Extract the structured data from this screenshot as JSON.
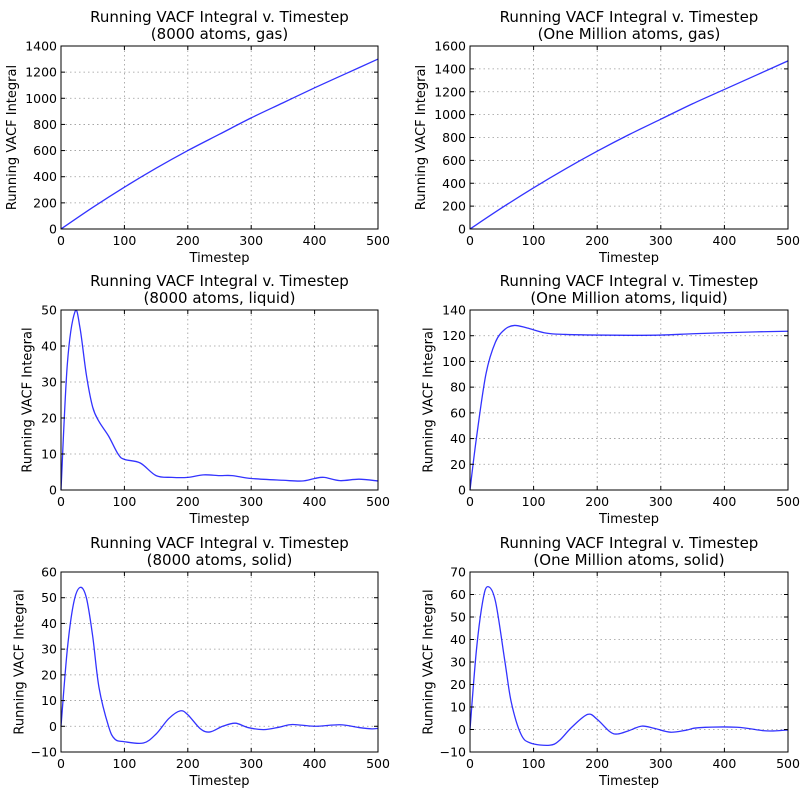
{
  "chart_data": [
    {
      "type": "line",
      "title": "Running VACF Integral v. Timestep",
      "subtitle": "(8000 atoms, gas)",
      "xlabel": "Timestep",
      "ylabel": "Running VACF Integral",
      "xlim": [
        0,
        500
      ],
      "ylim": [
        0,
        1400
      ],
      "xticks": [
        0,
        100,
        200,
        300,
        400,
        500
      ],
      "yticks": [
        0,
        200,
        400,
        600,
        800,
        1000,
        1200,
        1400
      ],
      "grid": true,
      "color": "#0000ff",
      "x": [
        0,
        50,
        100,
        150,
        200,
        250,
        300,
        350,
        400,
        450,
        500
      ],
      "y": [
        0,
        165,
        320,
        465,
        600,
        725,
        850,
        965,
        1080,
        1190,
        1300
      ]
    },
    {
      "type": "line",
      "title": "Running VACF Integral v. Timestep",
      "subtitle": "(One Million atoms, gas)",
      "xlabel": "Timestep",
      "ylabel": "Running VACF Integral",
      "xlim": [
        0,
        500
      ],
      "ylim": [
        0,
        1600
      ],
      "xticks": [
        0,
        100,
        200,
        300,
        400,
        500
      ],
      "yticks": [
        0,
        200,
        400,
        600,
        800,
        1000,
        1200,
        1400,
        1600
      ],
      "grid": true,
      "color": "#0000ff",
      "x": [
        0,
        50,
        100,
        150,
        200,
        250,
        300,
        350,
        400,
        450,
        500
      ],
      "y": [
        0,
        185,
        360,
        525,
        680,
        825,
        960,
        1095,
        1220,
        1345,
        1470
      ]
    },
    {
      "type": "line",
      "title": "Running VACF Integral v. Timestep",
      "subtitle": "(8000 atoms, liquid)",
      "xlabel": "Timestep",
      "ylabel": "Running VACF Integral",
      "xlim": [
        0,
        500
      ],
      "ylim": [
        0,
        50
      ],
      "xticks": [
        0,
        100,
        200,
        300,
        400,
        500
      ],
      "yticks": [
        0,
        10,
        20,
        30,
        40,
        50
      ],
      "grid": true,
      "color": "#0000ff",
      "x": [
        0,
        10,
        22,
        30,
        40,
        50,
        60,
        75,
        90,
        100,
        125,
        150,
        175,
        200,
        225,
        250,
        270,
        300,
        350,
        380,
        400,
        415,
        440,
        470,
        500
      ],
      "y": [
        0,
        35,
        49.5,
        45,
        32,
        23,
        19,
        15,
        10,
        8.5,
        7.5,
        4,
        3.5,
        3.5,
        4.2,
        4,
        4,
        3.2,
        2.7,
        2.5,
        3.2,
        3.5,
        2.6,
        3,
        2.5
      ]
    },
    {
      "type": "line",
      "title": "Running VACF Integral v. Timestep",
      "subtitle": "(One Million atoms, liquid)",
      "xlabel": "Timestep",
      "ylabel": "Running VACF Integral",
      "xlim": [
        0,
        500
      ],
      "ylim": [
        0,
        140
      ],
      "xticks": [
        0,
        100,
        200,
        300,
        400,
        500
      ],
      "yticks": [
        0,
        20,
        40,
        60,
        80,
        100,
        120,
        140
      ],
      "grid": true,
      "color": "#0000ff",
      "x": [
        0,
        10,
        25,
        40,
        55,
        70,
        90,
        120,
        150,
        200,
        250,
        300,
        350,
        400,
        450,
        500
      ],
      "y": [
        0,
        40,
        90,
        115,
        125,
        128,
        126,
        122,
        121,
        120.5,
        120.3,
        120.5,
        121.5,
        122.3,
        123,
        123.5
      ]
    },
    {
      "type": "line",
      "title": "Running VACF Integral v. Timestep",
      "subtitle": "(8000 atoms, solid)",
      "xlabel": "Timestep",
      "ylabel": "Running VACF Integral",
      "xlim": [
        0,
        500
      ],
      "ylim": [
        -10,
        60
      ],
      "xticks": [
        0,
        100,
        200,
        300,
        400,
        500
      ],
      "yticks": [
        -10,
        0,
        10,
        20,
        30,
        40,
        50,
        60
      ],
      "grid": true,
      "color": "#0000ff",
      "x": [
        0,
        10,
        20,
        30,
        40,
        50,
        60,
        75,
        85,
        100,
        130,
        150,
        170,
        188,
        200,
        220,
        235,
        255,
        275,
        295,
        320,
        345,
        365,
        400,
        440,
        470,
        490,
        500
      ],
      "y": [
        0,
        30,
        48,
        54,
        50,
        35,
        15,
        0,
        -5,
        -6,
        -6.5,
        -3,
        3,
        6,
        4.5,
        -1,
        -2.2,
        0,
        1.2,
        -0.5,
        -1.3,
        -0.3,
        0.7,
        0,
        0.6,
        -0.5,
        -1,
        -0.8
      ]
    },
    {
      "type": "line",
      "title": "Running VACF Integral v. Timestep",
      "subtitle": "(One Million atoms, solid)",
      "xlabel": "Timestep",
      "ylabel": "Running VACF Integral",
      "xlim": [
        0,
        500
      ],
      "ylim": [
        -10,
        70
      ],
      "xticks": [
        0,
        100,
        200,
        300,
        400,
        500
      ],
      "yticks": [
        -10,
        0,
        10,
        20,
        30,
        40,
        50,
        60,
        70
      ],
      "grid": true,
      "color": "#0000ff",
      "x": [
        0,
        10,
        20,
        28,
        40,
        55,
        65,
        80,
        95,
        125,
        140,
        160,
        185,
        200,
        220,
        232,
        250,
        270,
        290,
        315,
        340,
        360,
        420,
        460,
        480,
        500
      ],
      "y": [
        0,
        35,
        57,
        63.5,
        57,
        30,
        12,
        -2,
        -6,
        -7,
        -5,
        1,
        6.7,
        4.5,
        -1,
        -2,
        -0.5,
        1.5,
        0.5,
        -1.2,
        -0.3,
        0.8,
        1,
        -0.5,
        -0.6,
        -0.2
      ]
    }
  ]
}
